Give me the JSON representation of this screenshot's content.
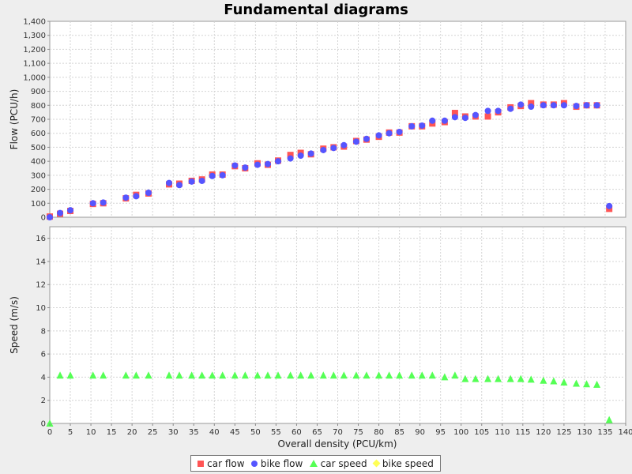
{
  "chart_data": {
    "type": "scatter",
    "title": "Fundamental diagrams",
    "xlabel": "Overall density (PCU/km)",
    "xlim": [
      0,
      140
    ],
    "x_ticks": [
      "0",
      "5",
      "10",
      "15",
      "20",
      "25",
      "30",
      "35",
      "40",
      "45",
      "50",
      "55",
      "60",
      "65",
      "70",
      "75",
      "80",
      "85",
      "90",
      "95",
      "100",
      "105",
      "110",
      "115",
      "120",
      "125",
      "130",
      "135",
      "140"
    ],
    "grid": true,
    "legend_position": "bottom",
    "panels": [
      {
        "ylabel": "Flow (PCU/h)",
        "ylim": [
          0,
          1400
        ],
        "y_ticks": [
          "0",
          "100",
          "200",
          "300",
          "400",
          "500",
          "600",
          "700",
          "800",
          "900",
          "1,000",
          "1,100",
          "1,200",
          "1,300",
          "1,400"
        ],
        "series": [
          {
            "name": "car flow",
            "marker": "square",
            "color": "#ff5555",
            "x": [
              0,
              2.5,
              5,
              10.5,
              13,
              18.5,
              21,
              24,
              29,
              31.5,
              34.5,
              37,
              39.5,
              42,
              45,
              47.5,
              50.5,
              53,
              55.5,
              58.5,
              61,
              63.5,
              66.5,
              69,
              71.5,
              74.5,
              77,
              80,
              82.5,
              85,
              88,
              90.5,
              93,
              96,
              98.5,
              101,
              103.5,
              106.5,
              109,
              112,
              114.5,
              117,
              120,
              122.5,
              125,
              128,
              130.5,
              133,
              136
            ],
            "y": [
              5,
              25,
              45,
              95,
              100,
              135,
              160,
              170,
              235,
              240,
              260,
              270,
              305,
              305,
              365,
              350,
              385,
              375,
              405,
              445,
              460,
              450,
              490,
              500,
              505,
              545,
              555,
              575,
              605,
              605,
              650,
              650,
              670,
              680,
              745,
              720,
              720,
              720,
              750,
              785,
              795,
              815,
              805,
              805,
              815,
              790,
              800,
              800,
              60
            ]
          },
          {
            "name": "bike flow",
            "marker": "circle",
            "color": "#5555ff",
            "x": [
              0,
              2.5,
              5,
              10.5,
              13,
              18.5,
              21,
              24,
              29,
              31.5,
              34.5,
              37,
              39.5,
              42,
              45,
              47.5,
              50.5,
              53,
              55.5,
              58.5,
              61,
              63.5,
              66.5,
              69,
              71.5,
              74.5,
              77,
              80,
              82.5,
              85,
              88,
              90.5,
              93,
              96,
              98.5,
              101,
              103.5,
              106.5,
              109,
              112,
              114.5,
              117,
              120,
              122.5,
              125,
              128,
              130.5,
              133,
              136
            ],
            "y": [
              0,
              30,
              50,
              100,
              105,
              140,
              150,
              175,
              245,
              230,
              255,
              260,
              295,
              300,
              370,
              355,
              375,
              380,
              400,
              420,
              440,
              455,
              480,
              495,
              515,
              540,
              560,
              585,
              600,
              610,
              650,
              655,
              690,
              690,
              715,
              710,
              730,
              760,
              760,
              775,
              805,
              790,
              800,
              800,
              800,
              795,
              800,
              800,
              80
            ]
          }
        ]
      },
      {
        "ylabel": "Speed (m/s)",
        "ylim": [
          0,
          17
        ],
        "y_ticks": [
          "0",
          "2",
          "4",
          "6",
          "8",
          "10",
          "12",
          "14",
          "16"
        ],
        "series": [
          {
            "name": "car speed",
            "marker": "triangle",
            "color": "#55ff55",
            "x": [
              0,
              2.5,
              5,
              10.5,
              13,
              18.5,
              21,
              24,
              29,
              31.5,
              34.5,
              37,
              39.5,
              42,
              45,
              47.5,
              50.5,
              53,
              55.5,
              58.5,
              61,
              63.5,
              66.5,
              69,
              71.5,
              74.5,
              77,
              80,
              82.5,
              85,
              88,
              90.5,
              93,
              96,
              98.5,
              101,
              103.5,
              106.5,
              109,
              112,
              114.5,
              117,
              120,
              122.5,
              125,
              128,
              130.5,
              133,
              136
            ],
            "y": [
              0,
              4.15,
              4.15,
              4.15,
              4.15,
              4.15,
              4.15,
              4.15,
              4.15,
              4.15,
              4.15,
              4.15,
              4.15,
              4.15,
              4.15,
              4.15,
              4.15,
              4.15,
              4.15,
              4.15,
              4.15,
              4.15,
              4.15,
              4.15,
              4.15,
              4.15,
              4.15,
              4.15,
              4.15,
              4.15,
              4.15,
              4.15,
              4.15,
              4.0,
              4.15,
              3.85,
              3.85,
              3.85,
              3.85,
              3.85,
              3.85,
              3.8,
              3.7,
              3.65,
              3.55,
              3.45,
              3.4,
              3.35,
              0.3
            ]
          },
          {
            "name": "bike speed",
            "marker": "diamond",
            "color": "#ffff55",
            "x": [],
            "y": []
          }
        ]
      }
    ]
  }
}
